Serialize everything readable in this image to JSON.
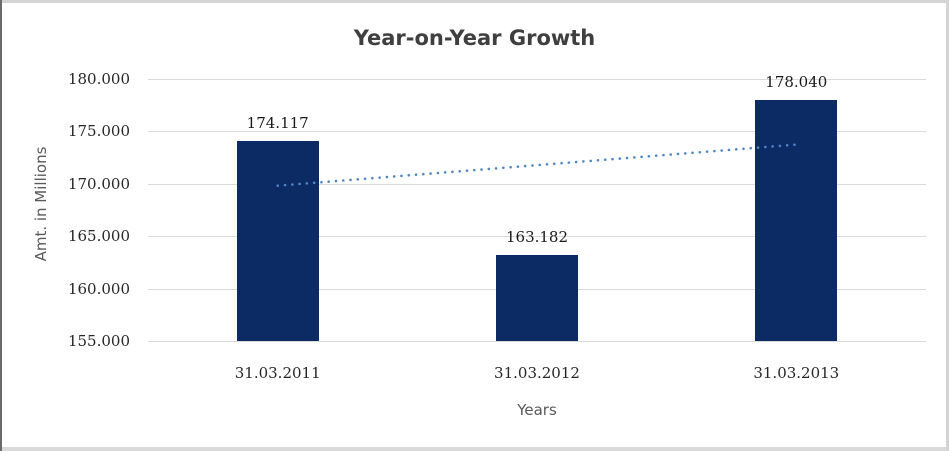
{
  "chart_data": {
    "type": "bar",
    "title": "Year-on-Year Growth",
    "xlabel": "Years",
    "ylabel": "Amt. in Millions",
    "categories": [
      "31.03.2011",
      "31.03.2012",
      "31.03.2013"
    ],
    "values": [
      174.117,
      163.182,
      178.04
    ],
    "data_labels": [
      "174.117",
      "163.182",
      "178.040"
    ],
    "ylim": [
      155,
      180
    ],
    "yticks": [
      155,
      160,
      165,
      170,
      175,
      180
    ],
    "ytick_labels": [
      "155.000",
      "160.000",
      "165.000",
      "170.000",
      "175.000",
      "180.000"
    ],
    "grid": true,
    "legend": "none",
    "trendline": {
      "type": "linear",
      "style": "dotted",
      "start_value": 169.82,
      "end_value": 173.74
    },
    "colors": {
      "bar": "#0c2a63",
      "trendline": "#4e86c8",
      "gridline": "#d9d9d9",
      "title": "#3f3f3f",
      "axis_title": "#595959",
      "tick_label": "#262626"
    }
  }
}
